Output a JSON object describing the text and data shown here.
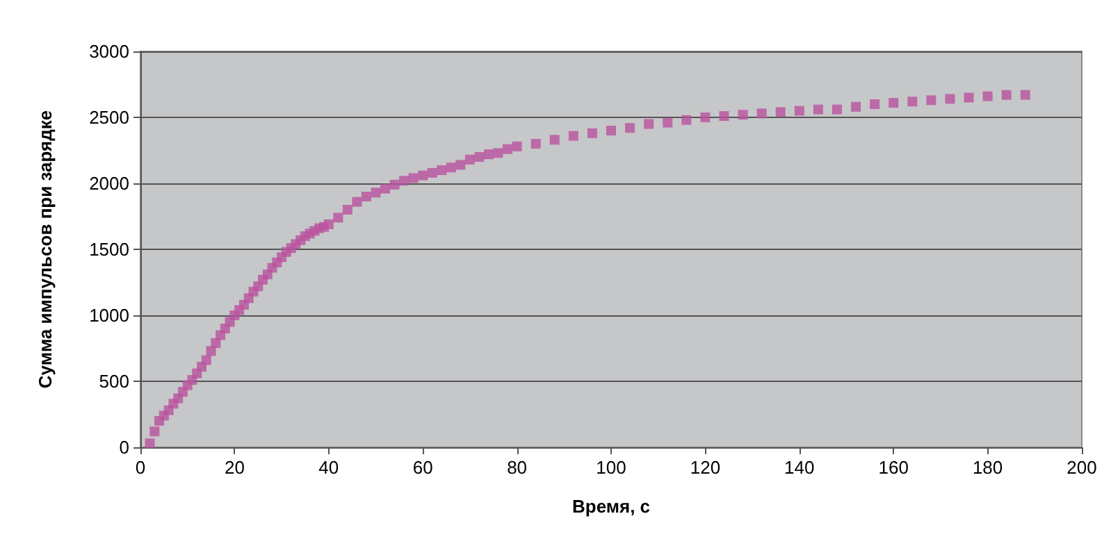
{
  "chart_data": {
    "type": "scatter",
    "xlabel": "Время, с",
    "ylabel": "Сумма импульсов при зарядке",
    "series": [
      {
        "color": "#b9529f",
        "x": [
          2,
          3,
          4,
          5,
          6,
          7,
          8,
          9,
          10,
          11,
          12,
          13,
          14,
          15,
          16,
          17,
          18,
          19,
          20,
          21,
          22,
          23,
          24,
          25,
          26,
          27,
          28,
          29,
          30,
          31,
          32,
          33,
          34,
          35,
          36,
          37,
          38,
          39,
          40,
          42,
          44,
          46,
          48,
          50,
          52,
          54,
          56,
          58,
          60,
          62,
          64,
          66,
          68,
          70,
          72,
          74,
          76,
          78,
          80,
          84,
          88,
          92,
          96,
          100,
          104,
          108,
          112,
          116,
          120,
          124,
          128,
          132,
          136,
          140,
          144,
          148,
          152,
          156,
          160,
          164,
          168,
          172,
          176,
          180,
          184,
          188
        ],
        "values": [
          30,
          120,
          200,
          240,
          280,
          330,
          370,
          420,
          470,
          510,
          560,
          610,
          660,
          730,
          790,
          850,
          900,
          950,
          1000,
          1040,
          1080,
          1130,
          1180,
          1220,
          1270,
          1310,
          1360,
          1400,
          1440,
          1480,
          1510,
          1540,
          1570,
          1600,
          1620,
          1640,
          1660,
          1670,
          1690,
          1740,
          1800,
          1860,
          1900,
          1930,
          1960,
          1990,
          2020,
          2040,
          2060,
          2080,
          2100,
          2120,
          2140,
          2180,
          2200,
          2220,
          2230,
          2260,
          2280,
          2300,
          2330,
          2360,
          2380,
          2400,
          2420,
          2450,
          2460,
          2480,
          2500,
          2510,
          2520,
          2530,
          2540,
          2550,
          2560,
          2560,
          2580,
          2600,
          2610,
          2620,
          2630,
          2640,
          2650,
          2660,
          2670,
          2670
        ]
      }
    ],
    "xlim": [
      0,
      200
    ],
    "xticks": [
      0,
      20,
      40,
      60,
      80,
      100,
      120,
      140,
      160,
      180,
      200
    ],
    "ylim": [
      0,
      3000
    ],
    "yticks": [
      0,
      500,
      1000,
      1500,
      2000,
      2500,
      3000
    ],
    "grid": "y",
    "marker": "square"
  }
}
